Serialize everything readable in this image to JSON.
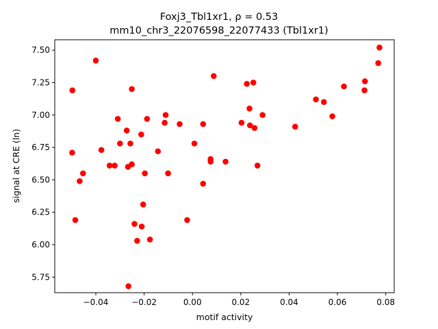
{
  "chart_data": {
    "type": "scatter",
    "title_line1": "Foxj3_Tbl1xr1, ρ = 0.53",
    "title_line2": "mm10_chr3_22076598_22077433 (Tbl1xr1)",
    "xlabel": "motif activity",
    "ylabel": "signal at CRE (ln)",
    "xlim": [
      -0.057,
      0.0835
    ],
    "ylim": [
      5.63,
      7.58
    ],
    "xticks": [
      -0.04,
      -0.02,
      0.0,
      0.02,
      0.04,
      0.06,
      0.08
    ],
    "xtick_labels": [
      "−0.04",
      "−0.02",
      "0.00",
      "0.02",
      "0.04",
      "0.06",
      "0.08"
    ],
    "yticks": [
      5.75,
      6.0,
      6.25,
      6.5,
      6.75,
      7.0,
      7.25,
      7.5
    ],
    "ytick_labels": [
      "5.75",
      "6.00",
      "6.25",
      "6.50",
      "6.75",
      "7.00",
      "7.25",
      "7.50"
    ],
    "grid": false,
    "marker_color": "#ff0000",
    "points": [
      {
        "x": -0.0497,
        "y": 7.19
      },
      {
        "x": -0.0498,
        "y": 6.71
      },
      {
        "x": -0.0485,
        "y": 6.19
      },
      {
        "x": -0.0467,
        "y": 6.49
      },
      {
        "x": -0.0453,
        "y": 6.55
      },
      {
        "x": -0.04,
        "y": 7.42
      },
      {
        "x": -0.0377,
        "y": 6.73
      },
      {
        "x": -0.0343,
        "y": 6.61
      },
      {
        "x": -0.0322,
        "y": 6.61
      },
      {
        "x": -0.0309,
        "y": 6.97
      },
      {
        "x": -0.03,
        "y": 6.78
      },
      {
        "x": -0.0272,
        "y": 6.88
      },
      {
        "x": -0.0267,
        "y": 6.6
      },
      {
        "x": -0.0257,
        "y": 6.78
      },
      {
        "x": -0.0251,
        "y": 7.2
      },
      {
        "x": -0.0251,
        "y": 6.62
      },
      {
        "x": -0.024,
        "y": 6.16
      },
      {
        "x": -0.0229,
        "y": 6.03
      },
      {
        "x": -0.0212,
        "y": 6.85
      },
      {
        "x": -0.021,
        "y": 6.14
      },
      {
        "x": -0.0204,
        "y": 6.31
      },
      {
        "x": -0.0197,
        "y": 6.55
      },
      {
        "x": -0.0188,
        "y": 6.97
      },
      {
        "x": -0.0176,
        "y": 6.04
      },
      {
        "x": -0.0143,
        "y": 6.72
      },
      {
        "x": -0.0115,
        "y": 6.94
      },
      {
        "x": -0.0111,
        "y": 7.0
      },
      {
        "x": -0.0101,
        "y": 6.55
      },
      {
        "x": -0.0053,
        "y": 6.93
      },
      {
        "x": -0.0022,
        "y": 6.19
      },
      {
        "x": 0.0008,
        "y": 6.78
      },
      {
        "x": 0.0044,
        "y": 6.47
      },
      {
        "x": 0.0044,
        "y": 6.93
      },
      {
        "x": 0.0075,
        "y": 6.66
      },
      {
        "x": 0.0075,
        "y": 6.64
      },
      {
        "x": 0.0088,
        "y": 7.3
      },
      {
        "x": 0.0137,
        "y": 6.64
      },
      {
        "x": 0.0203,
        "y": 6.94
      },
      {
        "x": 0.0225,
        "y": 7.24
      },
      {
        "x": 0.0236,
        "y": 7.05
      },
      {
        "x": 0.0238,
        "y": 6.92
      },
      {
        "x": 0.0252,
        "y": 7.25
      },
      {
        "x": 0.0257,
        "y": 6.9
      },
      {
        "x": 0.0269,
        "y": 6.61
      },
      {
        "x": 0.029,
        "y": 7.0
      },
      {
        "x": 0.0425,
        "y": 6.91
      },
      {
        "x": 0.0511,
        "y": 7.12
      },
      {
        "x": 0.0544,
        "y": 7.1
      },
      {
        "x": 0.0579,
        "y": 6.99
      },
      {
        "x": 0.0627,
        "y": 7.22
      },
      {
        "x": -0.0265,
        "y": 5.68
      },
      {
        "x": 0.0712,
        "y": 7.19
      },
      {
        "x": 0.0714,
        "y": 7.26
      },
      {
        "x": 0.0769,
        "y": 7.4
      },
      {
        "x": 0.0774,
        "y": 7.52
      }
    ]
  }
}
